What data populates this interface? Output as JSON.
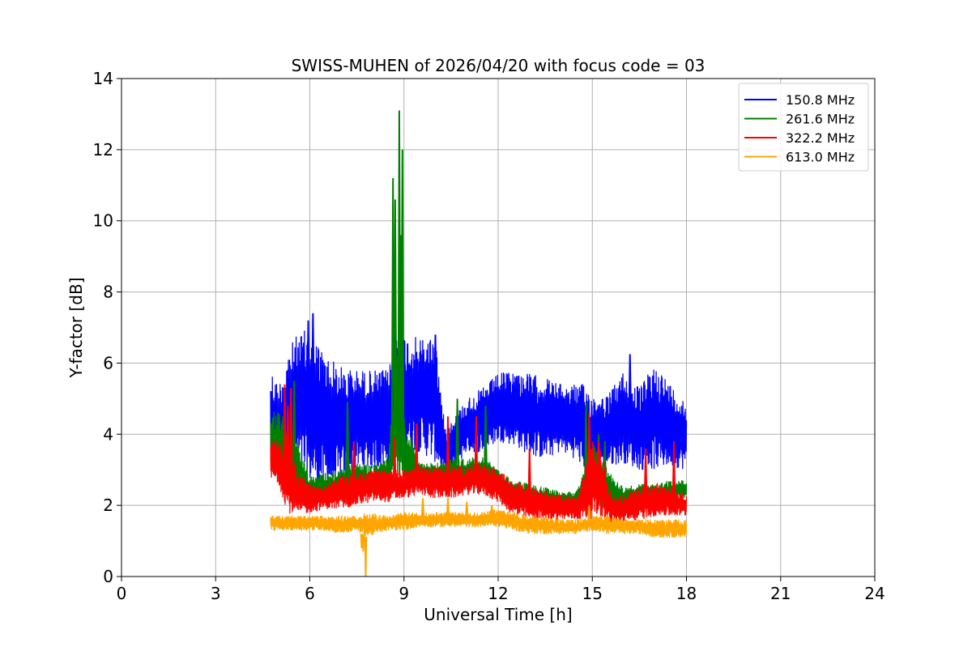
{
  "chart_data": {
    "type": "line",
    "title": "SWISS-MUHEN of 2026/04/20 with focus code = 03",
    "xlabel": "Universal Time [h]",
    "ylabel": "Y-factor [dB]",
    "xlim": [
      0,
      24
    ],
    "ylim": [
      0,
      14
    ],
    "xticks": [
      0,
      3,
      6,
      9,
      12,
      15,
      18,
      21,
      24
    ],
    "yticks": [
      0,
      2,
      4,
      6,
      8,
      10,
      12,
      14
    ],
    "grid": true,
    "legend_position": "top-right",
    "series": [
      {
        "name": "150.8 MHz",
        "color": "#0000ff",
        "x": [
          4.75,
          5.0,
          5.3,
          5.6,
          6.0,
          6.3,
          6.6,
          7.0,
          7.5,
          8.0,
          8.5,
          8.75,
          9.0,
          9.5,
          10.0,
          10.3,
          10.6,
          11.0,
          11.5,
          12.0,
          12.5,
          13.0,
          13.5,
          14.0,
          14.5,
          14.8,
          15.0,
          15.5,
          16.0,
          16.5,
          17.0,
          17.5,
          18.0
        ],
        "hi": [
          5.9,
          5.4,
          6.4,
          6.8,
          7.0,
          6.5,
          6.2,
          5.9,
          5.8,
          5.8,
          5.8,
          6.8,
          6.8,
          6.7,
          6.8,
          4.2,
          4.5,
          5.0,
          5.3,
          5.7,
          5.8,
          5.7,
          5.6,
          5.4,
          5.4,
          5.4,
          5.1,
          5.1,
          5.8,
          5.3,
          6.0,
          5.4,
          4.9
        ],
        "lo": [
          2.9,
          2.4,
          2.5,
          3.0,
          2.6,
          2.5,
          2.4,
          2.6,
          3.0,
          3.0,
          3.1,
          3.2,
          3.6,
          3.5,
          3.2,
          2.8,
          3.0,
          3.5,
          3.5,
          3.8,
          3.7,
          3.4,
          3.3,
          3.5,
          3.3,
          2.9,
          3.0,
          3.1,
          3.2,
          3.0,
          3.0,
          3.1,
          3.0
        ],
        "peaks": [
          [
            6.1,
            7.4
          ],
          [
            5.95,
            7.2
          ],
          [
            10.0,
            6.8
          ],
          [
            8.9,
            6.85
          ],
          [
            16.2,
            6.25
          ]
        ]
      },
      {
        "name": "261.6 MHz",
        "color": "#008000",
        "x": [
          4.75,
          5.0,
          5.3,
          5.6,
          6.0,
          6.5,
          7.0,
          7.5,
          8.0,
          8.5,
          8.75,
          9.0,
          9.5,
          10.0,
          10.5,
          11.0,
          11.5,
          12.0,
          12.5,
          13.0,
          13.5,
          14.0,
          14.5,
          15.0,
          15.5,
          16.0,
          16.5,
          17.0,
          17.5,
          18.0
        ],
        "hi": [
          4.5,
          4.8,
          4.2,
          3.8,
          2.8,
          2.9,
          3.0,
          3.2,
          3.1,
          3.4,
          6.5,
          4.5,
          3.2,
          3.2,
          3.3,
          3.3,
          3.4,
          3.0,
          2.7,
          2.6,
          2.5,
          2.4,
          2.4,
          3.8,
          3.0,
          2.5,
          2.6,
          2.6,
          2.7,
          2.7
        ],
        "lo": [
          2.8,
          2.8,
          2.2,
          2.0,
          2.0,
          2.1,
          2.2,
          2.3,
          2.3,
          2.5,
          2.7,
          2.6,
          2.6,
          2.6,
          2.6,
          2.6,
          2.6,
          2.3,
          2.0,
          1.9,
          1.9,
          1.9,
          1.9,
          2.0,
          1.9,
          1.9,
          2.0,
          2.0,
          2.1,
          2.2
        ],
        "peaks": [
          [
            8.65,
            11.2
          ],
          [
            8.72,
            10.6
          ],
          [
            8.85,
            13.1
          ],
          [
            8.95,
            12.0
          ],
          [
            8.9,
            9.6
          ],
          [
            5.5,
            5.5
          ],
          [
            7.2,
            4.9
          ],
          [
            10.7,
            5.0
          ],
          [
            11.6,
            4.8
          ],
          [
            14.8,
            4.9
          ],
          [
            15.2,
            4.0
          ],
          [
            15.4,
            3.8
          ]
        ]
      },
      {
        "name": "322.2 MHz",
        "color": "#ff0000",
        "x": [
          4.75,
          5.0,
          5.3,
          5.6,
          6.0,
          6.5,
          7.0,
          7.5,
          8.0,
          8.5,
          9.0,
          9.5,
          10.0,
          10.5,
          11.0,
          11.5,
          12.0,
          12.5,
          13.0,
          13.5,
          14.0,
          14.5,
          15.0,
          15.3,
          15.6,
          16.0,
          16.5,
          17.0,
          17.5,
          18.0
        ],
        "hi": [
          3.9,
          3.8,
          3.8,
          3.0,
          2.6,
          2.6,
          2.8,
          2.9,
          3.0,
          3.0,
          3.0,
          3.1,
          3.1,
          3.1,
          3.1,
          3.2,
          3.0,
          2.7,
          2.5,
          2.4,
          2.3,
          2.2,
          3.8,
          3.5,
          2.3,
          2.3,
          2.5,
          2.6,
          2.5,
          2.3
        ],
        "lo": [
          2.7,
          2.6,
          1.8,
          1.7,
          1.8,
          1.9,
          1.9,
          2.0,
          2.1,
          2.1,
          2.2,
          2.3,
          2.2,
          2.2,
          2.3,
          2.3,
          2.1,
          1.7,
          1.6,
          1.6,
          1.6,
          1.6,
          1.6,
          1.7,
          1.5,
          1.5,
          1.6,
          1.7,
          1.7,
          1.7
        ],
        "peaks": [
          [
            5.2,
            5.4
          ],
          [
            5.4,
            5.3
          ],
          [
            5.3,
            4.8
          ],
          [
            7.4,
            3.8
          ],
          [
            8.7,
            3.9
          ],
          [
            9.4,
            4.3
          ],
          [
            10.4,
            4.5
          ],
          [
            11.3,
            4.5
          ],
          [
            13.0,
            3.6
          ],
          [
            14.9,
            4.6
          ],
          [
            15.2,
            3.8
          ],
          [
            17.6,
            3.8
          ],
          [
            16.7,
            3.6
          ]
        ]
      },
      {
        "name": "613.0 MHz",
        "color": "#ffa500",
        "x": [
          4.75,
          5.5,
          6.0,
          6.5,
          7.0,
          7.5,
          7.8,
          8.5,
          9.0,
          9.5,
          10.0,
          10.5,
          11.0,
          11.5,
          12.0,
          12.5,
          13.0,
          13.5,
          14.0,
          14.5,
          15.0,
          15.5,
          16.0,
          16.5,
          17.0,
          17.5,
          18.0
        ],
        "hi": [
          1.7,
          1.7,
          1.7,
          1.7,
          1.7,
          1.7,
          1.8,
          1.7,
          1.8,
          1.8,
          1.8,
          1.8,
          1.8,
          1.8,
          1.9,
          1.8,
          1.7,
          1.7,
          1.6,
          1.6,
          1.7,
          1.7,
          1.6,
          1.6,
          1.6,
          1.6,
          1.6
        ],
        "lo": [
          1.3,
          1.3,
          1.3,
          1.3,
          1.2,
          1.3,
          1.1,
          1.3,
          1.3,
          1.4,
          1.4,
          1.4,
          1.4,
          1.4,
          1.4,
          1.3,
          1.2,
          1.2,
          1.2,
          1.2,
          1.3,
          1.2,
          1.2,
          1.2,
          1.1,
          1.1,
          1.1
        ],
        "dips": [
          [
            7.78,
            0.0
          ],
          [
            7.65,
            0.8
          ],
          [
            7.7,
            0.7
          ]
        ],
        "peaks": [
          [
            9.6,
            2.2
          ],
          [
            10.4,
            2.2
          ],
          [
            11.0,
            2.1
          ],
          [
            11.8,
            2.0
          ],
          [
            14.9,
            2.0
          ]
        ]
      }
    ]
  }
}
